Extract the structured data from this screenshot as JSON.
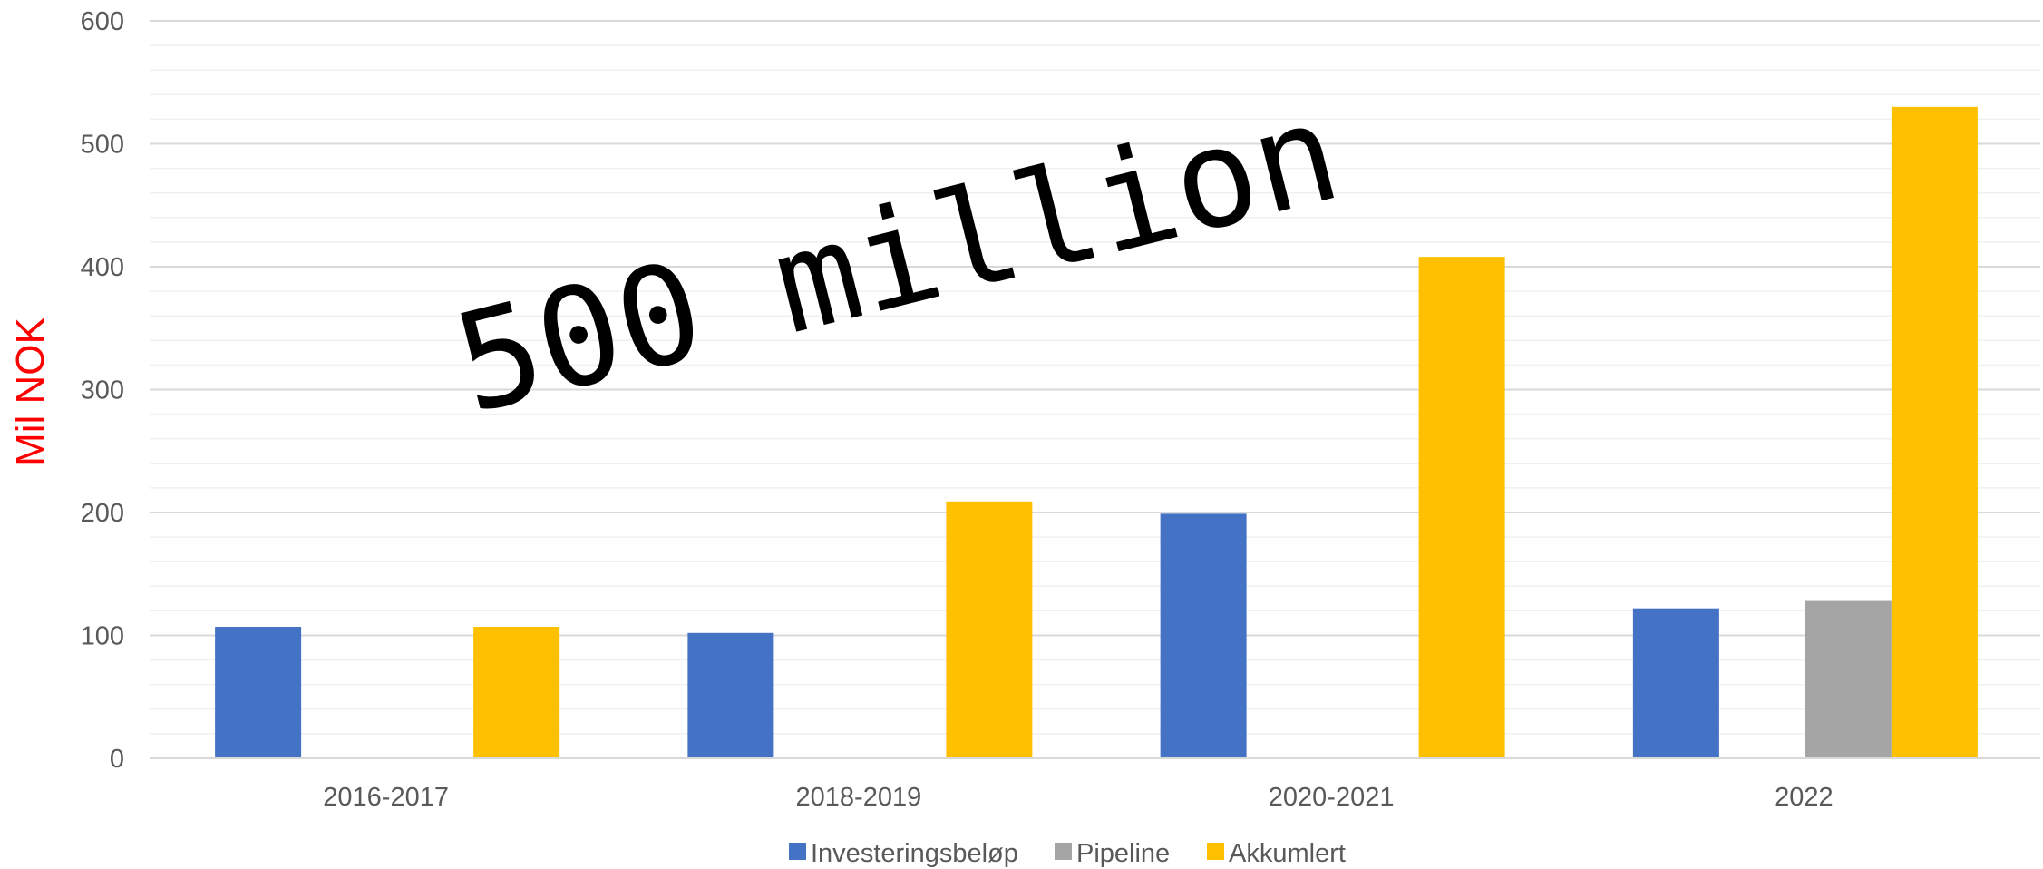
{
  "chart_data": {
    "type": "bar",
    "categories": [
      "2016-2017",
      "2018-2019",
      "2020-2021",
      "2022"
    ],
    "series": [
      {
        "name": "Investeringsbeløp",
        "color": "#4472c4",
        "values": [
          107,
          102,
          199,
          122
        ]
      },
      {
        "name": "Pipeline",
        "color": "#a5a5a5",
        "values": [
          0,
          0,
          0,
          128
        ]
      },
      {
        "name": "Akkumlert",
        "color": "#ffc000",
        "values": [
          107,
          209,
          408,
          530
        ]
      }
    ],
    "ylabel": "Mil NOK",
    "xlabel": "",
    "title": "",
    "ylim": [
      0,
      600
    ],
    "yticks": [
      "0",
      "100",
      "200",
      "300",
      "400",
      "500",
      "600"
    ],
    "grid": true,
    "legend_position": "bottom",
    "annotation": "500 million"
  }
}
